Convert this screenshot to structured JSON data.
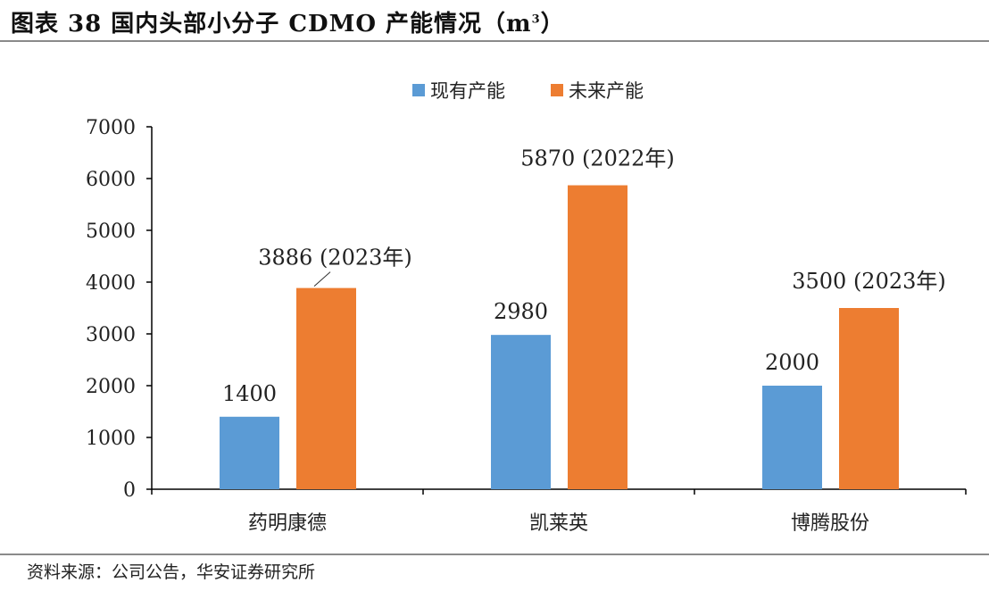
{
  "title": "图表 38 国内头部小分子 CDMO 产能情况（m",
  "title_sup": "3",
  "title_tail": "）",
  "source": "资料来源：公司公告，华安证券研究所",
  "colors": {
    "current": "#5B9BD5",
    "future": "#ED7D31",
    "axis": "#000000"
  },
  "chart_data": {
    "type": "bar",
    "categories": [
      "药明康德",
      "凯莱英",
      "博腾股份"
    ],
    "series": [
      {
        "name": "现有产能",
        "values": [
          1400,
          2980,
          2000
        ],
        "labels": [
          "1400",
          "2980",
          "2000"
        ]
      },
      {
        "name": "未来产能",
        "values": [
          3886,
          5870,
          3500
        ],
        "labels": [
          "3886 (2023年)",
          "5870 (2022年)",
          "3500 (2023年)"
        ]
      }
    ],
    "ylim": [
      0,
      7000
    ],
    "yticks": [
      "0",
      "1000",
      "2000",
      "3000",
      "4000",
      "5000",
      "6000",
      "7000"
    ],
    "legend": "top-center",
    "grid": false
  }
}
